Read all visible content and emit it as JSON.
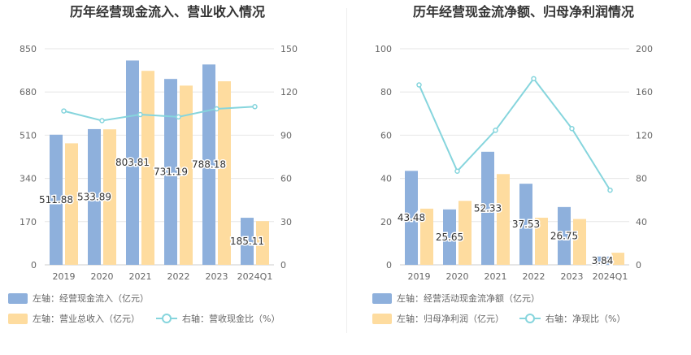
{
  "charts": [
    {
      "title": "历年经营现金流入、营业收入情况",
      "chart_data": {
        "type": "bar",
        "categories": [
          "2019",
          "2020",
          "2021",
          "2022",
          "2023",
          "2024Q1"
        ],
        "y_left": {
          "ylim": [
            0,
            850
          ],
          "ticks": [
            "0",
            "170",
            "340",
            "510",
            "680",
            "850"
          ]
        },
        "y_right": {
          "ylim": [
            0,
            150
          ],
          "ticks": [
            "0",
            "30",
            "60",
            "90",
            "120",
            "150"
          ]
        },
        "series": [
          {
            "name": "左轴：经营现金流入（亿元）",
            "axis": "left",
            "kind": "bar",
            "color": "#8eb0dc",
            "values": [
              511.88,
              533.89,
              803.81,
              731.19,
              788.18,
              185.11
            ],
            "labels": [
              "511.88",
              "533.89",
              "803.81",
              "731.19",
              "788.18",
              "185.11"
            ]
          },
          {
            "name": "左轴：营业总收入（亿元）",
            "axis": "left",
            "kind": "bar",
            "color": "#fedc9f",
            "values": [
              478,
              533,
              763,
              705,
              722,
              172
            ]
          },
          {
            "name": "右轴：营收现金比（%）",
            "axis": "right",
            "kind": "line",
            "color": "#86d5dd",
            "values": [
              106.8,
              100.1,
              104.3,
              102.7,
              108.3,
              109.8
            ]
          }
        ]
      }
    },
    {
      "title": "历年经营现金流净额、归母净利润情况",
      "chart_data": {
        "type": "bar",
        "categories": [
          "2019",
          "2020",
          "2021",
          "2022",
          "2023",
          "2024Q1"
        ],
        "y_left": {
          "ylim": [
            0,
            100
          ],
          "ticks": [
            "0",
            "20",
            "40",
            "60",
            "80",
            "100"
          ]
        },
        "y_right": {
          "ylim": [
            0,
            200
          ],
          "ticks": [
            "0",
            "40",
            "80",
            "120",
            "160",
            "200"
          ]
        },
        "series": [
          {
            "name": "左轴：经营活动现金流净额（亿元）",
            "axis": "left",
            "kind": "bar",
            "color": "#8eb0dc",
            "values": [
              43.48,
              25.65,
              52.33,
              37.53,
              26.75,
              3.84
            ],
            "labels": [
              "43.48",
              "25.65",
              "52.33",
              "37.53",
              "26.75",
              "3.84"
            ]
          },
          {
            "name": "左轴：归母净利润（亿元）",
            "axis": "left",
            "kind": "bar",
            "color": "#fedc9f",
            "values": [
              26,
              29.6,
              42,
              21.8,
              21.2,
              5.6
            ]
          },
          {
            "name": "右轴：净现比（%）",
            "axis": "right",
            "kind": "line",
            "color": "#86d5dd",
            "values": [
              166.5,
              86.7,
              124.5,
              172.3,
              126.1,
              69.1
            ]
          }
        ]
      }
    }
  ]
}
